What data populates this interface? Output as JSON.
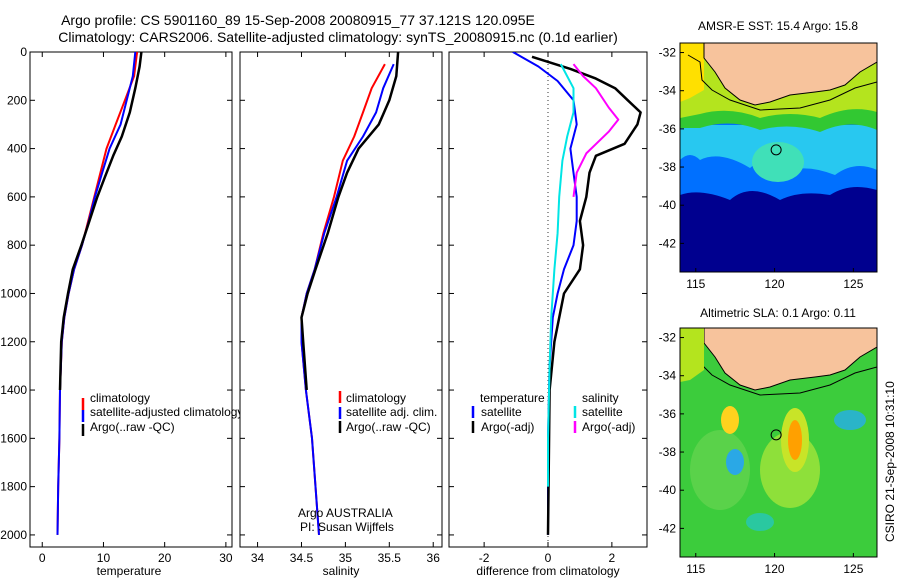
{
  "title_line1": "Argo profile: CS 5901160_89 15-Sep-2008 20080915_77 37.121S 120.095E",
  "title_line2": "Climatology: CARS2006. Satellite-adjusted climatology: synTS_20080915.nc (0.1d earlier)",
  "colors": {
    "climatology": "#ff0000",
    "satellite": "#0000ff",
    "argo": "#000000",
    "sat_salinity": "#00e5e5",
    "argo_salinity": "#ff00ff",
    "land": "#f7c39c",
    "ocean_deep": "#00008f"
  },
  "chart_data": [
    {
      "type": "line",
      "xlabel": "temperature",
      "xlim": [
        -2,
        31
      ],
      "ylim": [
        2050,
        0
      ],
      "y_reversed": true,
      "xticks": [
        "0",
        "10",
        "20",
        "30"
      ],
      "yticks": [
        "0",
        "200",
        "400",
        "600",
        "800",
        "1000",
        "1200",
        "1400",
        "1600",
        "1800",
        "2000"
      ],
      "legend": [
        "climatology",
        "satellite-adjusted climatology",
        "Argo(..raw -QC)"
      ],
      "series": [
        {
          "name": "climatology",
          "color": "#ff0000",
          "points": [
            [
              15.5,
              0
            ],
            [
              15.0,
              100
            ],
            [
              13.5,
              200
            ],
            [
              12.0,
              300
            ],
            [
              10.5,
              400
            ],
            [
              9.5,
              500
            ],
            [
              8.5,
              600
            ],
            [
              7.5,
              700
            ],
            [
              6.5,
              800
            ],
            [
              5.2,
              900
            ],
            [
              4.3,
              1000
            ],
            [
              3.6,
              1100
            ],
            [
              3.2,
              1200
            ],
            [
              2.9,
              1400
            ],
            [
              2.8,
              1600
            ],
            [
              2.6,
              1800
            ],
            [
              2.5,
              2000
            ]
          ]
        },
        {
          "name": "satellite-adjusted climatology",
          "color": "#0000ff",
          "points": [
            [
              15.2,
              0
            ],
            [
              14.8,
              100
            ],
            [
              13.8,
              200
            ],
            [
              12.8,
              300
            ],
            [
              11.0,
              400
            ],
            [
              9.8,
              500
            ],
            [
              8.6,
              600
            ],
            [
              7.6,
              700
            ],
            [
              6.5,
              800
            ],
            [
              5.2,
              900
            ],
            [
              4.3,
              1000
            ],
            [
              3.6,
              1100
            ],
            [
              3.2,
              1200
            ],
            [
              2.9,
              1400
            ],
            [
              2.8,
              1600
            ],
            [
              2.6,
              1800
            ],
            [
              2.5,
              2000
            ]
          ]
        },
        {
          "name": "Argo(..raw -QC)",
          "color": "#000000",
          "points": [
            [
              16.2,
              0
            ],
            [
              15.9,
              60
            ],
            [
              15.2,
              150
            ],
            [
              14.3,
              250
            ],
            [
              13.0,
              350
            ],
            [
              11.6,
              430
            ],
            [
              10.2,
              520
            ],
            [
              9.0,
              600
            ],
            [
              7.7,
              700
            ],
            [
              6.4,
              800
            ],
            [
              5.0,
              900
            ],
            [
              4.2,
              1000
            ],
            [
              3.5,
              1100
            ],
            [
              3.1,
              1200
            ],
            [
              2.9,
              1400
            ]
          ]
        }
      ]
    },
    {
      "type": "line",
      "xlabel": "salinity",
      "xlim": [
        33.8,
        36.1
      ],
      "ylim": [
        2050,
        0
      ],
      "y_reversed": true,
      "xticks": [
        "34",
        "34.5",
        "35",
        "35.5",
        "36"
      ],
      "legend": [
        "climatology",
        "satellite adj. clim.",
        "Argo(..raw -QC)"
      ],
      "annotation": [
        "Argo AUSTRALIA",
        "PI: Susan Wijffels"
      ],
      "series": [
        {
          "name": "climatology",
          "color": "#ff0000",
          "points": [
            [
              35.45,
              50
            ],
            [
              35.3,
              150
            ],
            [
              35.2,
              250
            ],
            [
              35.1,
              350
            ],
            [
              34.97,
              450
            ],
            [
              34.87,
              600
            ],
            [
              34.75,
              750
            ],
            [
              34.65,
              900
            ],
            [
              34.56,
              1000
            ],
            [
              34.5,
              1100
            ],
            [
              34.5,
              1200
            ],
            [
              34.55,
              1400
            ],
            [
              34.62,
              1600
            ],
            [
              34.66,
              1800
            ],
            [
              34.7,
              2000
            ]
          ]
        },
        {
          "name": "satellite adj. clim.",
          "color": "#0000ff",
          "points": [
            [
              35.55,
              50
            ],
            [
              35.43,
              150
            ],
            [
              35.35,
              250
            ],
            [
              35.2,
              350
            ],
            [
              35.02,
              450
            ],
            [
              34.9,
              600
            ],
            [
              34.76,
              750
            ],
            [
              34.65,
              900
            ],
            [
              34.56,
              1000
            ],
            [
              34.5,
              1100
            ],
            [
              34.5,
              1200
            ],
            [
              34.55,
              1400
            ],
            [
              34.62,
              1600
            ],
            [
              34.66,
              1800
            ],
            [
              34.7,
              2000
            ]
          ]
        },
        {
          "name": "Argo(..raw -QC)",
          "color": "#000000",
          "points": [
            [
              35.6,
              0
            ],
            [
              35.58,
              100
            ],
            [
              35.5,
              200
            ],
            [
              35.38,
              300
            ],
            [
              35.15,
              400
            ],
            [
              35.02,
              500
            ],
            [
              34.92,
              600
            ],
            [
              34.8,
              750
            ],
            [
              34.66,
              900
            ],
            [
              34.57,
              1000
            ],
            [
              34.5,
              1100
            ],
            [
              34.52,
              1200
            ],
            [
              34.56,
              1400
            ]
          ]
        }
      ]
    },
    {
      "type": "line",
      "xlabel": "difference from climatology",
      "xlim": [
        -3.1,
        3.1
      ],
      "ylim": [
        2050,
        0
      ],
      "y_reversed": true,
      "xticks": [
        "-2",
        "0",
        "2"
      ],
      "legend_temperature": [
        "temperature",
        "satellite",
        "Argo(-adj)"
      ],
      "legend_salinity": [
        "salinity",
        "satellite",
        "Argo(-adj)"
      ],
      "series": [
        {
          "name": "temperature satellite",
          "color": "#0000ff",
          "points": [
            [
              -1.1,
              0
            ],
            [
              -0.3,
              60
            ],
            [
              0.3,
              120
            ],
            [
              0.8,
              200
            ],
            [
              0.9,
              300
            ],
            [
              0.7,
              400
            ],
            [
              0.8,
              500
            ],
            [
              0.9,
              600
            ],
            [
              0.9,
              700
            ],
            [
              0.8,
              800
            ],
            [
              0.5,
              900
            ],
            [
              0.3,
              1000
            ],
            [
              0.15,
              1100
            ],
            [
              0.05,
              1300
            ],
            [
              0.0,
              1600
            ],
            [
              0.0,
              2000
            ]
          ]
        },
        {
          "name": "temperature Argo(-adj)",
          "color": "#000000",
          "points": [
            [
              -0.5,
              20
            ],
            [
              0.7,
              70
            ],
            [
              1.5,
              110
            ],
            [
              2.1,
              150
            ],
            [
              2.5,
              200
            ],
            [
              2.9,
              250
            ],
            [
              2.8,
              300
            ],
            [
              2.4,
              380
            ],
            [
              1.5,
              430
            ],
            [
              1.3,
              500
            ],
            [
              1.2,
              600
            ],
            [
              1.0,
              700
            ],
            [
              1.1,
              800
            ],
            [
              1.0,
              900
            ],
            [
              0.5,
              1000
            ],
            [
              0.2,
              1200
            ],
            [
              0.05,
              1400
            ],
            [
              0.0,
              2000
            ]
          ]
        },
        {
          "name": "salinity satellite",
          "color": "#00e5e5",
          "points": [
            [
              0.4,
              50
            ],
            [
              0.8,
              150
            ],
            [
              0.8,
              250
            ],
            [
              0.6,
              350
            ],
            [
              0.45,
              450
            ],
            [
              0.35,
              600
            ],
            [
              0.3,
              750
            ],
            [
              0.2,
              900
            ],
            [
              0.15,
              1000
            ],
            [
              0.1,
              1100
            ],
            [
              0.05,
              1300
            ],
            [
              0.0,
              1600
            ],
            [
              0.0,
              1800
            ]
          ]
        },
        {
          "name": "salinity Argo(-adj)",
          "color": "#ff00ff",
          "points": [
            [
              0.8,
              50
            ],
            [
              1.1,
              100
            ],
            [
              1.5,
              150
            ],
            [
              1.9,
              230
            ],
            [
              2.2,
              280
            ],
            [
              1.9,
              330
            ],
            [
              1.2,
              420
            ],
            [
              0.9,
              500
            ],
            [
              0.8,
              600
            ]
          ]
        }
      ]
    },
    {
      "type": "heatmap",
      "title": "AMSR-E SST: 15.4 Argo: 15.8",
      "xlim": [
        114,
        126.5
      ],
      "ylim": [
        -43.5,
        -31.5
      ],
      "xticks": [
        "115",
        "120",
        "125"
      ],
      "yticks": [
        "-32",
        "-34",
        "-36",
        "-38",
        "-40",
        "-42"
      ],
      "marker": [
        120.1,
        -37.1
      ]
    },
    {
      "type": "heatmap",
      "title": "Altimetric SLA: 0.1 Argo: 0.11",
      "xlim": [
        114,
        126.5
      ],
      "ylim": [
        -43.5,
        -31.5
      ],
      "xticks": [
        "115",
        "120",
        "125"
      ],
      "yticks": [
        "-32",
        "-34",
        "-36",
        "-38",
        "-40",
        "-42"
      ],
      "marker": [
        120.1,
        -37.1
      ]
    }
  ],
  "credit": "CSIRO 21-Sep-2008 10:31:10"
}
